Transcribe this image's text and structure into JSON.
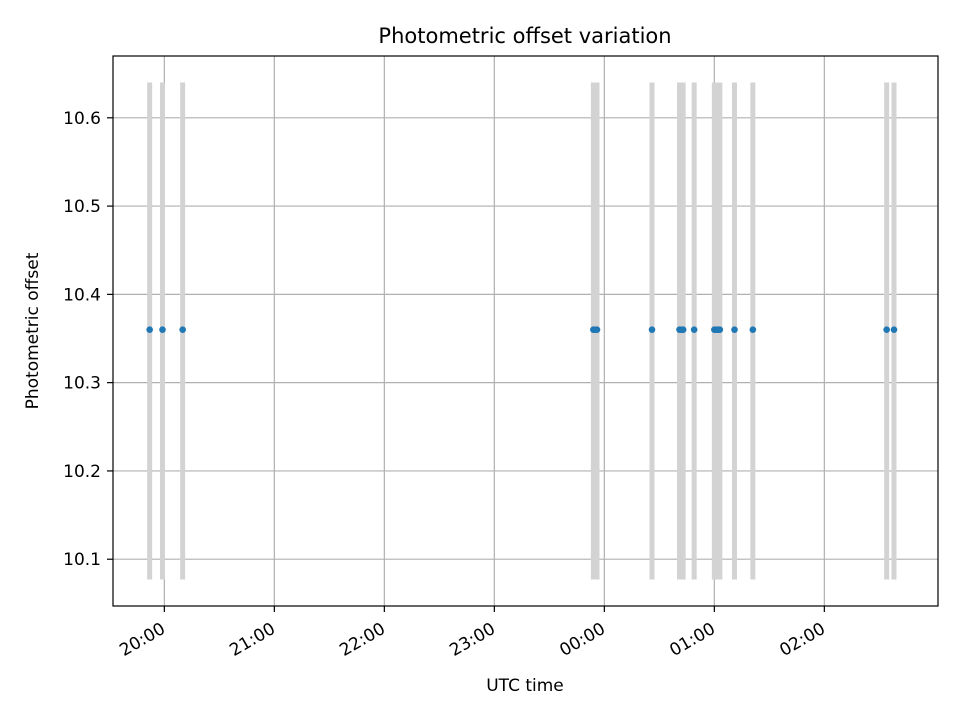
{
  "chart_data": {
    "type": "scatter",
    "title": "Photometric offset variation",
    "xlabel": "UTC time",
    "ylabel": "Photometric offset",
    "x_axis": {
      "type": "time",
      "range": [
        "19:32",
        "03:02"
      ],
      "ticks": [
        "20:00",
        "21:00",
        "22:00",
        "23:00",
        "00:00",
        "01:00",
        "02:00"
      ]
    },
    "y_axis": {
      "range": [
        10.047,
        10.67
      ],
      "ticks": [
        "10.1",
        "10.2",
        "10.3",
        "10.4",
        "10.5",
        "10.6"
      ]
    },
    "grid": true,
    "colors": {
      "points": "#1f77b4",
      "vlines": "#d3d3d3",
      "grid": "#b0b0b0"
    },
    "vertical_lines": {
      "ymin": 10.077,
      "ymax": 10.64,
      "times": [
        "19:52",
        "19:59",
        "20:10",
        "23:54",
        "23:56",
        "00:26",
        "00:41",
        "00:43",
        "00:49",
        "01:00",
        "01:02",
        "01:03",
        "01:11",
        "01:21",
        "02:34",
        "02:38"
      ]
    },
    "points": {
      "y": 10.36,
      "times": [
        "19:52",
        "19:59",
        "20:10",
        "23:54",
        "23:55",
        "23:56",
        "00:26",
        "00:41",
        "00:42",
        "00:43",
        "00:49",
        "01:00",
        "01:01",
        "01:02",
        "01:03",
        "01:11",
        "01:21",
        "02:34",
        "02:38"
      ]
    }
  }
}
